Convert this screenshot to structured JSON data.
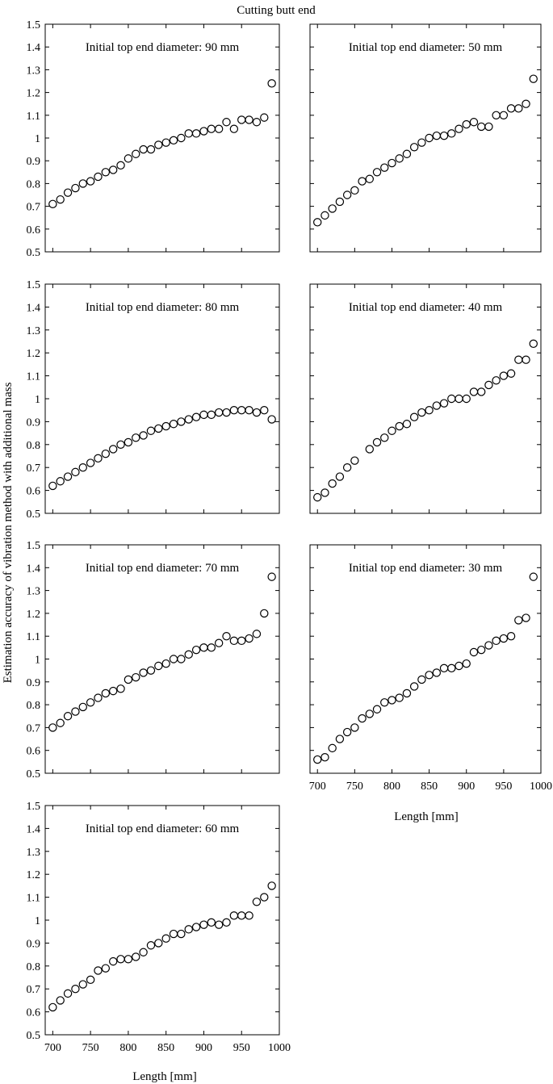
{
  "title": "Cutting butt end",
  "ylabel": "Estimation accuracy of vibration method with additional mass",
  "xlabel": "Length [mm]",
  "chart_data": [
    {
      "type": "scatter",
      "label": "Initial top end diameter: 90 mm",
      "xlim": [
        690,
        1000
      ],
      "ylim": [
        0.5,
        1.5
      ],
      "yticks": [
        "0.5",
        "0.6",
        "0.7",
        "0.8",
        "0.9",
        "1",
        "1.1",
        "1.2",
        "1.3",
        "1.4",
        "1.5"
      ],
      "xticks": [],
      "x": [
        700,
        710,
        720,
        730,
        740,
        750,
        760,
        770,
        780,
        790,
        800,
        810,
        820,
        830,
        840,
        850,
        860,
        870,
        880,
        890,
        900,
        910,
        920,
        930,
        940,
        950,
        960,
        970,
        980,
        990
      ],
      "y": [
        0.71,
        0.73,
        0.76,
        0.78,
        0.8,
        0.81,
        0.83,
        0.85,
        0.86,
        0.88,
        0.91,
        0.93,
        0.95,
        0.95,
        0.97,
        0.98,
        0.99,
        1.0,
        1.02,
        1.02,
        1.03,
        1.04,
        1.04,
        1.07,
        1.04,
        1.08,
        1.08,
        1.07,
        1.09,
        1.24
      ]
    },
    {
      "type": "scatter",
      "label": "Initial top end diameter: 50 mm",
      "xlim": [
        690,
        1000
      ],
      "ylim": [
        0.5,
        1.5
      ],
      "yticks": [],
      "xticks": [],
      "x": [
        700,
        710,
        720,
        730,
        740,
        750,
        760,
        770,
        780,
        790,
        800,
        810,
        820,
        830,
        840,
        850,
        860,
        870,
        880,
        890,
        900,
        910,
        920,
        930,
        940,
        950,
        960,
        970,
        980,
        990
      ],
      "y": [
        0.63,
        0.66,
        0.69,
        0.72,
        0.75,
        0.77,
        0.81,
        0.82,
        0.85,
        0.87,
        0.89,
        0.91,
        0.93,
        0.96,
        0.98,
        1.0,
        1.01,
        1.01,
        1.02,
        1.04,
        1.06,
        1.07,
        1.05,
        1.05,
        1.1,
        1.1,
        1.13,
        1.13,
        1.15,
        1.26
      ]
    },
    {
      "type": "scatter",
      "label": "Initial top end diameter: 80 mm",
      "xlim": [
        690,
        1000
      ],
      "ylim": [
        0.5,
        1.5
      ],
      "yticks": [
        "0.5",
        "0.6",
        "0.7",
        "0.8",
        "0.9",
        "1",
        "1.1",
        "1.2",
        "1.3",
        "1.4",
        "1.5"
      ],
      "xticks": [],
      "x": [
        700,
        710,
        720,
        730,
        740,
        750,
        760,
        770,
        780,
        790,
        800,
        810,
        820,
        830,
        840,
        850,
        860,
        870,
        880,
        890,
        900,
        910,
        920,
        930,
        940,
        950,
        960,
        970,
        980,
        990
      ],
      "y": [
        0.62,
        0.64,
        0.66,
        0.68,
        0.7,
        0.72,
        0.74,
        0.76,
        0.78,
        0.8,
        0.81,
        0.83,
        0.84,
        0.86,
        0.87,
        0.88,
        0.89,
        0.9,
        0.91,
        0.92,
        0.93,
        0.93,
        0.94,
        0.94,
        0.95,
        0.95,
        0.95,
        0.94,
        0.95,
        0.91
      ]
    },
    {
      "type": "scatter",
      "label": "Initial top end diameter: 40 mm",
      "xlim": [
        690,
        1000
      ],
      "ylim": [
        0.5,
        1.5
      ],
      "yticks": [],
      "xticks": [],
      "x": [
        700,
        710,
        720,
        730,
        740,
        750,
        770,
        780,
        790,
        800,
        810,
        820,
        830,
        840,
        850,
        860,
        870,
        880,
        890,
        900,
        910,
        920,
        930,
        940,
        950,
        960,
        970,
        980,
        990
      ],
      "y": [
        0.57,
        0.59,
        0.63,
        0.66,
        0.7,
        0.73,
        0.78,
        0.81,
        0.83,
        0.86,
        0.88,
        0.89,
        0.92,
        0.94,
        0.95,
        0.97,
        0.98,
        1.0,
        1.0,
        1.0,
        1.03,
        1.03,
        1.06,
        1.08,
        1.1,
        1.11,
        1.17,
        1.17,
        1.24
      ]
    },
    {
      "type": "scatter",
      "label": "Initial top end diameter: 70 mm",
      "xlim": [
        690,
        1000
      ],
      "ylim": [
        0.5,
        1.5
      ],
      "yticks": [
        "0.5",
        "0.6",
        "0.7",
        "0.8",
        "0.9",
        "1",
        "1.1",
        "1.2",
        "1.3",
        "1.4",
        "1.5"
      ],
      "xticks": [],
      "x": [
        700,
        710,
        720,
        730,
        740,
        750,
        760,
        770,
        780,
        790,
        800,
        810,
        820,
        830,
        840,
        850,
        860,
        870,
        880,
        890,
        900,
        910,
        920,
        930,
        940,
        950,
        960,
        970,
        980,
        990
      ],
      "y": [
        0.7,
        0.72,
        0.75,
        0.77,
        0.79,
        0.81,
        0.83,
        0.85,
        0.86,
        0.87,
        0.91,
        0.92,
        0.94,
        0.95,
        0.97,
        0.98,
        1.0,
        1.0,
        1.02,
        1.04,
        1.05,
        1.05,
        1.07,
        1.1,
        1.08,
        1.08,
        1.09,
        1.11,
        1.2,
        1.36
      ]
    },
    {
      "type": "scatter",
      "label": "Initial top end diameter: 30 mm",
      "xlim": [
        690,
        1000
      ],
      "ylim": [
        0.5,
        1.5
      ],
      "yticks": [],
      "xticks": [
        "700",
        "750",
        "800",
        "850",
        "900",
        "950",
        "1000"
      ],
      "x": [
        700,
        710,
        720,
        730,
        740,
        750,
        760,
        770,
        780,
        790,
        800,
        810,
        820,
        830,
        840,
        850,
        860,
        870,
        880,
        890,
        900,
        910,
        920,
        930,
        940,
        950,
        960,
        970,
        980,
        990
      ],
      "y": [
        0.56,
        0.57,
        0.61,
        0.65,
        0.68,
        0.7,
        0.74,
        0.76,
        0.78,
        0.81,
        0.82,
        0.83,
        0.85,
        0.88,
        0.91,
        0.93,
        0.94,
        0.96,
        0.96,
        0.97,
        0.98,
        1.03,
        1.04,
        1.06,
        1.08,
        1.09,
        1.1,
        1.17,
        1.18,
        1.36
      ]
    },
    {
      "type": "scatter",
      "label": "Initial top end diameter: 60 mm",
      "xlim": [
        690,
        1000
      ],
      "ylim": [
        0.5,
        1.5
      ],
      "yticks": [
        "0.5",
        "0.6",
        "0.7",
        "0.8",
        "0.9",
        "1",
        "1.1",
        "1.2",
        "1.3",
        "1.4",
        "1.5"
      ],
      "xticks": [
        "700",
        "750",
        "800",
        "850",
        "900",
        "950",
        "1000"
      ],
      "x": [
        700,
        710,
        720,
        730,
        740,
        750,
        760,
        770,
        780,
        790,
        800,
        810,
        820,
        830,
        840,
        850,
        860,
        870,
        880,
        890,
        900,
        910,
        920,
        930,
        940,
        950,
        960,
        970,
        980,
        990
      ],
      "y": [
        0.62,
        0.65,
        0.68,
        0.7,
        0.72,
        0.74,
        0.78,
        0.79,
        0.82,
        0.83,
        0.83,
        0.84,
        0.86,
        0.89,
        0.9,
        0.92,
        0.94,
        0.94,
        0.96,
        0.97,
        0.98,
        0.99,
        0.98,
        0.99,
        1.02,
        1.02,
        1.02,
        1.08,
        1.1,
        1.15
      ]
    }
  ]
}
